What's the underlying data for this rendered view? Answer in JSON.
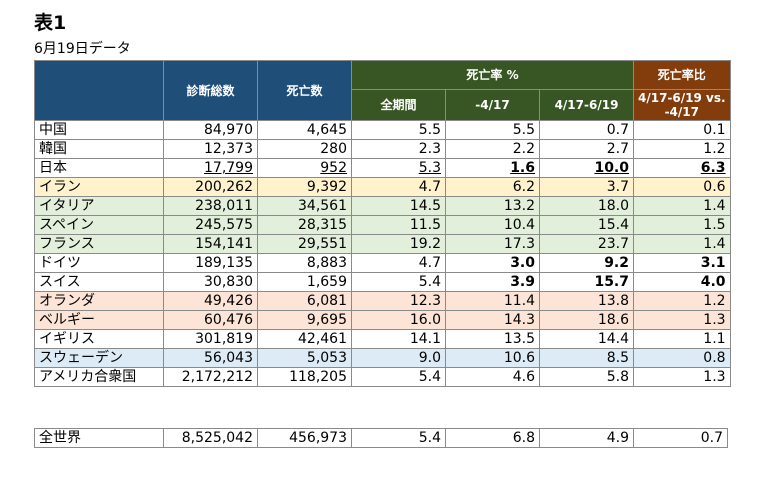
{
  "title": "表1",
  "subtitle": "6月19日データ",
  "headers": {
    "diagnosed": "診断総数",
    "deaths": "死亡数",
    "death_rate_group": "死亡率 %",
    "ratio_group": "死亡率比",
    "full_period": "全期間",
    "until_0417": "-4/17",
    "range_0417_0619": "4/17-6/19",
    "ratio_line1": "4/17-6/19 vs.",
    "ratio_line2": "-4/17"
  },
  "rows": [
    {
      "name": "中国",
      "diagnosed": "84,970",
      "deaths": "4,645",
      "all": "5.5",
      "early": "5.5",
      "late": "0.7",
      "ratio": "0.1",
      "bg": ""
    },
    {
      "name": "韓国",
      "diagnosed": "12,373",
      "deaths": "280",
      "all": "2.3",
      "early": "2.2",
      "late": "2.7",
      "ratio": "1.2",
      "bg": ""
    },
    {
      "name": "日本",
      "diagnosed": "17,799",
      "deaths": "952",
      "all": "5.3",
      "early": "1.6",
      "late": "10.0",
      "ratio": "6.3",
      "bg": ""
    },
    {
      "name": "イラン",
      "diagnosed": "200,262",
      "deaths": "9,392",
      "all": "4.7",
      "early": "6.2",
      "late": "3.7",
      "ratio": "0.6",
      "bg": "yellow"
    },
    {
      "name": "イタリア",
      "diagnosed": "238,011",
      "deaths": "34,561",
      "all": "14.5",
      "early": "13.2",
      "late": "18.0",
      "ratio": "1.4",
      "bg": "green"
    },
    {
      "name": "スペイン",
      "diagnosed": "245,575",
      "deaths": "28,315",
      "all": "11.5",
      "early": "10.4",
      "late": "15.4",
      "ratio": "1.5",
      "bg": "green"
    },
    {
      "name": "フランス",
      "diagnosed": "154,141",
      "deaths": "29,551",
      "all": "19.2",
      "early": "17.3",
      "late": "23.7",
      "ratio": "1.4",
      "bg": "green"
    },
    {
      "name": "ドイツ",
      "diagnosed": "189,135",
      "deaths": "8,883",
      "all": "4.7",
      "early": "3.0",
      "late": "9.2",
      "ratio": "3.1",
      "bg": ""
    },
    {
      "name": "スイス",
      "diagnosed": "30,830",
      "deaths": "1,659",
      "all": "5.4",
      "early": "3.9",
      "late": "15.7",
      "ratio": "4.0",
      "bg": ""
    },
    {
      "name": "オランダ",
      "diagnosed": "49,426",
      "deaths": "6,081",
      "all": "12.3",
      "early": "11.4",
      "late": "13.8",
      "ratio": "1.2",
      "bg": "orange"
    },
    {
      "name": "ベルギー",
      "diagnosed": "60,476",
      "deaths": "9,695",
      "all": "16.0",
      "early": "14.3",
      "late": "18.6",
      "ratio": "1.3",
      "bg": "orange"
    },
    {
      "name": "イギリス",
      "diagnosed": "301,819",
      "deaths": "42,461",
      "all": "14.1",
      "early": "13.5",
      "late": "14.4",
      "ratio": "1.1",
      "bg": ""
    },
    {
      "name": "スウェーデン",
      "diagnosed": "56,043",
      "deaths": "5,053",
      "all": "9.0",
      "early": "10.6",
      "late": "8.5",
      "ratio": "0.8",
      "bg": "blue"
    },
    {
      "name": "アメリカ合衆国",
      "diagnosed": "2,172,212",
      "deaths": "118,205",
      "all": "5.4",
      "early": "4.6",
      "late": "5.8",
      "ratio": "1.3",
      "bg": ""
    }
  ],
  "total": {
    "name": "全世界",
    "diagnosed": "8,525,042",
    "deaths": "456,973",
    "all": "5.4",
    "early": "6.8",
    "late": "4.9",
    "ratio": "0.7"
  },
  "colors": {
    "header_navy": "#1f4e79",
    "header_green": "#375623",
    "header_brown": "#833c0b",
    "row_yellow": "#fff2cc",
    "row_green": "#e2efda",
    "row_orange": "#fce4d6",
    "row_blue": "#ddebf7"
  }
}
